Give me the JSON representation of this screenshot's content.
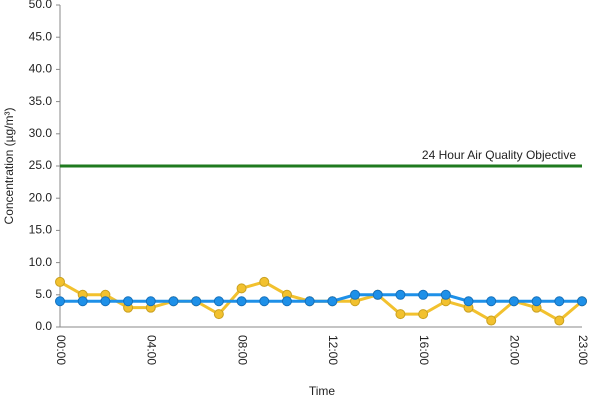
{
  "chart_data": {
    "type": "line",
    "x_label": "Time",
    "y_label": "Concentration (µg/m³)",
    "categories": [
      "00:00",
      null,
      null,
      null,
      "04:00",
      null,
      null,
      null,
      "08:00",
      null,
      null,
      null,
      "12:00",
      null,
      null,
      null,
      "16:00",
      null,
      null,
      null,
      "20:00",
      null,
      null,
      "23:00"
    ],
    "series": [
      {
        "color": "#f2c12e",
        "values": [
          7,
          5,
          5,
          3,
          3,
          4,
          4,
          2,
          6,
          7,
          5,
          4,
          4,
          4,
          5,
          2,
          2,
          4,
          3,
          1,
          4,
          3,
          1,
          4
        ]
      },
      {
        "color": "#1e90e8",
        "values": [
          4,
          4,
          4,
          4,
          4,
          4,
          4,
          4,
          4,
          4,
          4,
          4,
          4,
          5,
          5,
          5,
          5,
          5,
          4,
          4,
          4,
          4,
          4,
          4
        ]
      }
    ],
    "objective": {
      "value": 25,
      "label": "24 Hour Air Quality Objective",
      "color": "#1f7a1f"
    },
    "ylim": [
      0,
      50
    ],
    "yticks": [
      {
        "value": 0,
        "label": "0.0"
      },
      {
        "value": 5,
        "label": "5.0"
      },
      {
        "value": 10,
        "label": "10.0"
      },
      {
        "value": 15,
        "label": "15.0"
      },
      {
        "value": 20,
        "label": "20.0"
      },
      {
        "value": 25,
        "label": "25.0"
      },
      {
        "value": 30,
        "label": "30.0"
      },
      {
        "value": 35,
        "label": "35.0"
      },
      {
        "value": 40,
        "label": "40.0"
      },
      {
        "value": 45,
        "label": "45.0"
      },
      {
        "value": 50,
        "label": "50.0"
      }
    ],
    "grid": false
  }
}
